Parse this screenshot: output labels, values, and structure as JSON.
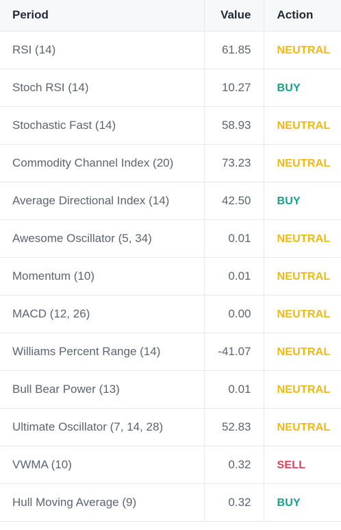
{
  "header": {
    "period": "Period",
    "value": "Value",
    "action": "Action"
  },
  "colors": {
    "neutral": "#f0b90b",
    "buy": "#16a08a",
    "sell": "#e23d5a"
  },
  "rows": [
    {
      "period": "RSI (14)",
      "value": "61.85",
      "action": "NEUTRAL",
      "type": "neutral"
    },
    {
      "period": "Stoch RSI (14)",
      "value": "10.27",
      "action": "BUY",
      "type": "buy"
    },
    {
      "period": "Stochastic Fast (14)",
      "value": "58.93",
      "action": "NEUTRAL",
      "type": "neutral"
    },
    {
      "period": "Commodity Channel Index (20)",
      "value": "73.23",
      "action": "NEUTRAL",
      "type": "neutral"
    },
    {
      "period": "Average Directional Index (14)",
      "value": "42.50",
      "action": "BUY",
      "type": "buy"
    },
    {
      "period": "Awesome Oscillator (5, 34)",
      "value": "0.01",
      "action": "NEUTRAL",
      "type": "neutral"
    },
    {
      "period": "Momentum (10)",
      "value": "0.01",
      "action": "NEUTRAL",
      "type": "neutral"
    },
    {
      "period": "MACD (12, 26)",
      "value": "0.00",
      "action": "NEUTRAL",
      "type": "neutral"
    },
    {
      "period": "Williams Percent Range (14)",
      "value": "-41.07",
      "action": "NEUTRAL",
      "type": "neutral"
    },
    {
      "period": "Bull Bear Power (13)",
      "value": "0.01",
      "action": "NEUTRAL",
      "type": "neutral"
    },
    {
      "period": "Ultimate Oscillator (7, 14, 28)",
      "value": "52.83",
      "action": "NEUTRAL",
      "type": "neutral"
    },
    {
      "period": "VWMA (10)",
      "value": "0.32",
      "action": "SELL",
      "type": "sell"
    },
    {
      "period": "Hull Moving Average (9)",
      "value": "0.32",
      "action": "BUY",
      "type": "buy"
    }
  ]
}
